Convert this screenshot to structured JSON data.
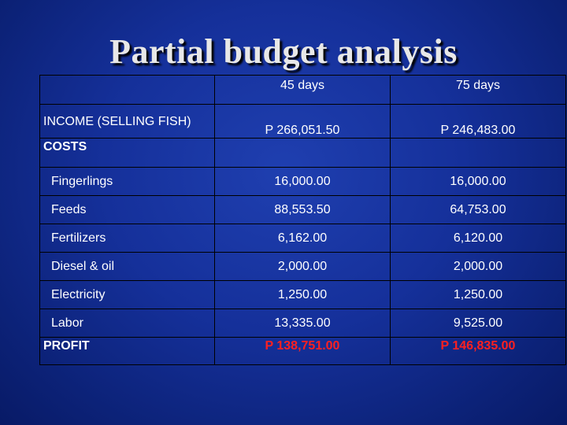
{
  "slide": {
    "title": "Partial budget analysis"
  },
  "table": {
    "header": [
      "45 days",
      "75 days"
    ],
    "income": {
      "label": "INCOME (SELLING FISH)",
      "values": [
        "P 266,051.50",
        "P 246,483.00"
      ]
    },
    "costs_label": "COSTS",
    "cost_items": [
      {
        "label": "Fingerlings",
        "values": [
          "16,000.00",
          "16,000.00"
        ]
      },
      {
        "label": "Feeds",
        "values": [
          "88,553.50",
          "64,753.00"
        ]
      },
      {
        "label": "Fertilizers",
        "values": [
          "6,162.00",
          "6,120.00"
        ]
      },
      {
        "label": "Diesel & oil",
        "values": [
          "2,000.00",
          "2,000.00"
        ]
      },
      {
        "label": "Electricity",
        "values": [
          "1,250.00",
          "1,250.00"
        ]
      },
      {
        "label": "Labor",
        "values": [
          "13,335.00",
          "9,525.00"
        ]
      }
    ],
    "profit": {
      "label": "PROFIT",
      "values": [
        "P 138,751.00",
        "P 146,835.00"
      ],
      "color": "#ff2020"
    }
  },
  "colors": {
    "background": "#15309a",
    "text": "#ffffff",
    "title": "#e8e8e8"
  }
}
